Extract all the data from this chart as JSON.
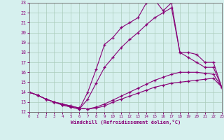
{
  "xlabel": "Windchill (Refroidissement éolien,°C)",
  "bg_color": "#d6f0ee",
  "line_color": "#880077",
  "grid_color": "#aaccbb",
  "xlim": [
    0,
    23
  ],
  "ylim": [
    12,
    23
  ],
  "xticks": [
    0,
    1,
    2,
    3,
    4,
    5,
    6,
    7,
    8,
    9,
    10,
    11,
    12,
    13,
    14,
    15,
    16,
    17,
    18,
    19,
    20,
    21,
    22,
    23
  ],
  "yticks": [
    12,
    13,
    14,
    15,
    16,
    17,
    18,
    19,
    20,
    21,
    22,
    23
  ],
  "curves": [
    [
      14.0,
      13.7,
      13.3,
      13.0,
      12.8,
      12.6,
      12.4,
      12.3,
      12.4,
      12.6,
      13.0,
      13.3,
      13.6,
      13.9,
      14.2,
      14.5,
      14.7,
      14.9,
      15.0,
      15.1,
      15.2,
      15.3,
      15.4,
      14.5
    ],
    [
      14.0,
      13.7,
      13.3,
      13.0,
      12.8,
      12.6,
      12.4,
      12.3,
      12.5,
      12.8,
      13.2,
      13.6,
      14.0,
      14.4,
      14.8,
      15.2,
      15.5,
      15.8,
      16.0,
      16.0,
      16.0,
      15.9,
      15.8,
      14.5
    ],
    [
      14.0,
      13.7,
      13.3,
      13.0,
      12.7,
      12.5,
      12.3,
      13.3,
      14.9,
      16.5,
      17.5,
      18.5,
      19.3,
      20.0,
      20.8,
      21.5,
      22.0,
      22.5,
      18.0,
      17.5,
      17.0,
      16.5,
      16.5,
      14.5
    ],
    [
      14.0,
      13.7,
      13.3,
      13.0,
      12.7,
      12.5,
      12.3,
      14.0,
      16.3,
      18.8,
      19.5,
      20.5,
      21.0,
      21.5,
      23.0,
      23.3,
      22.2,
      23.0,
      18.0,
      18.0,
      17.8,
      17.0,
      17.0,
      14.5
    ]
  ]
}
